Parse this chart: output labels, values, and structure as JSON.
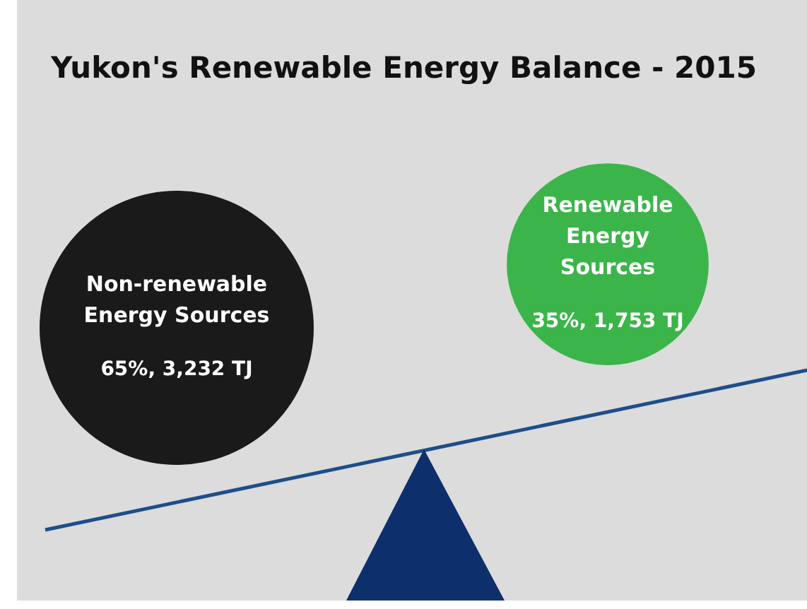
{
  "chart_data": {
    "type": "other",
    "title": "Yukon's Renewable Energy Balance - 2015",
    "categories": [
      "Non-renewable Energy Sources",
      "Renewable Energy Sources"
    ],
    "values": [
      3232,
      1753
    ],
    "value_labels": [
      "65%, 3,232 TJ",
      "35%, 1,753 TJ"
    ],
    "colors": [
      "#1a1a1a",
      "#3bb54a"
    ]
  }
}
